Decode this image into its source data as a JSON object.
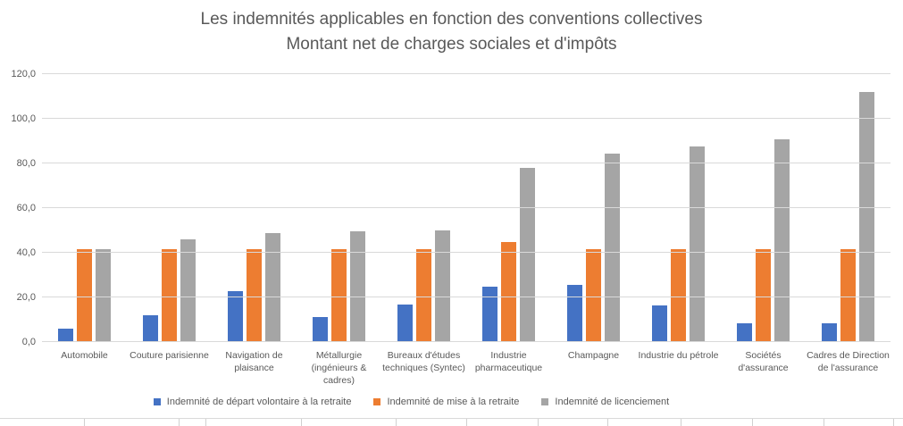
{
  "chart_data": {
    "type": "bar",
    "title": "Les indemnités applicables en fonction des conventions collectives",
    "subtitle": "Montant net de charges sociales et d'impôts",
    "categories": [
      "Automobile",
      "Couture parisienne",
      "Navigation de plaisance",
      "Métallurgie (ingénieurs & cadres)",
      "Bureaux d'études techniques (Syntec)",
      "Industrie pharmaceutique",
      "Champagne",
      "Industrie du pétrole",
      "Sociétés d'assurance",
      "Cadres de Direction de l'assurance"
    ],
    "series": [
      {
        "name": "Indemnité de départ volontaire à la retraite",
        "color": "#4472C4",
        "values": [
          6.0,
          12.0,
          23.0,
          11.2,
          16.8,
          25.0,
          25.5,
          16.5,
          8.5,
          8.5
        ]
      },
      {
        "name": "Indemnité de mise à la retraite",
        "color": "#ED7D31",
        "values": [
          41.5,
          41.5,
          41.5,
          41.5,
          41.5,
          45.0,
          41.5,
          41.5,
          41.5,
          41.5
        ]
      },
      {
        "name": "Indemnité de licenciement",
        "color": "#A5A5A5",
        "values": [
          41.5,
          46.0,
          49.0,
          49.5,
          50.0,
          78.0,
          84.5,
          87.5,
          91.0,
          112.0
        ]
      }
    ],
    "ylim": [
      0,
      120
    ],
    "yticks": [
      "0,0",
      "20,0",
      "40,0",
      "60,0",
      "80,0",
      "100,0",
      "120,0"
    ],
    "grid": true,
    "legend_position": "bottom"
  },
  "colors": {
    "gridline": "#D9D9D9",
    "axis_text": "#595959",
    "title_text": "#595959"
  }
}
